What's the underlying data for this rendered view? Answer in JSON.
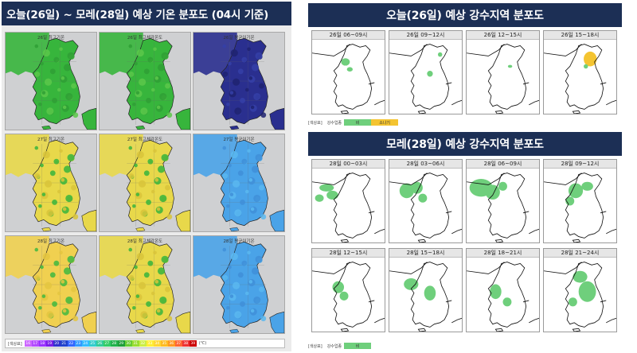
{
  "temp_panel": {
    "title": "오늘(26일) ~ 모레(28일) 예상 기온 분포도 (04시 기준)",
    "maps": [
      {
        "label": "26일 최고기온",
        "scheme": "green"
      },
      {
        "label": "26일 최고체감온도",
        "scheme": "green"
      },
      {
        "label": "26일 평균이기온",
        "scheme": "navy"
      },
      {
        "label": "27일 최고기온",
        "scheme": "yellow"
      },
      {
        "label": "27일 최고체감온도",
        "scheme": "yellow"
      },
      {
        "label": "27일 평균이기온",
        "scheme": "blue"
      },
      {
        "label": "28일 최고기온",
        "scheme": "yellowlight"
      },
      {
        "label": "28일 최고체감온도",
        "scheme": "yellow"
      },
      {
        "label": "28일 평균이기온",
        "scheme": "blue"
      }
    ],
    "legend": {
      "title": "[색상표]",
      "unit": "(℃)",
      "values": [
        "16",
        "17",
        "18",
        "19",
        "20",
        "21",
        "22",
        "23",
        "24",
        "25",
        "26",
        "27",
        "28",
        "29",
        "30",
        "31",
        "32",
        "33",
        "34",
        "35",
        "36",
        "37",
        "38",
        "39"
      ],
      "colors": [
        "#cc66ff",
        "#b34dff",
        "#9933ff",
        "#7a1fe6",
        "#3333cc",
        "#2244cc",
        "#3366ff",
        "#3399ff",
        "#33bbff",
        "#33cccc",
        "#33cc99",
        "#33cc66",
        "#22b14c",
        "#1f9e3a",
        "#66cc33",
        "#99dd33",
        "#ccee44",
        "#ffee33",
        "#ffd633",
        "#ffbb22",
        "#ff9922",
        "#ff6633",
        "#ee3333",
        "#cc0000"
      ]
    }
  },
  "precip_today": {
    "title": "오늘(26일) 예상 강수지역 분포도",
    "maps": [
      {
        "label": "26일 06~09시"
      },
      {
        "label": "26일 09~12시"
      },
      {
        "label": "26일 12~15시"
      },
      {
        "label": "26일 15~18시"
      }
    ],
    "legend": {
      "title": "[색상표]",
      "type_label": "강수업종",
      "items": [
        {
          "label": "비",
          "color": "#6fcf7c"
        },
        {
          "label": "소나기",
          "color": "#f4c431"
        }
      ]
    }
  },
  "precip_2day": {
    "title": "모레(28일) 예상 강수지역 분포도",
    "maps": [
      {
        "label": "28일 00~03시"
      },
      {
        "label": "28일 03~06시"
      },
      {
        "label": "28일 06~09시"
      },
      {
        "label": "28일 09~12시"
      },
      {
        "label": "28일 12~15시"
      },
      {
        "label": "28일 15~18시"
      },
      {
        "label": "28일 18~21시"
      },
      {
        "label": "28일 21~24시"
      }
    ],
    "legend": {
      "title": "[색상표]",
      "type_label": "강수업종",
      "items": [
        {
          "label": "비",
          "color": "#6fcf7c"
        }
      ]
    }
  },
  "colors": {
    "title_bar": "#1c2f55",
    "green": "#37b53c",
    "green_dark": "#1f8f2f",
    "yellow": "#e8d84a",
    "navy": "#2a2f8f",
    "blue": "#4aa3e8",
    "rain": "#6fcf7c",
    "shower": "#f4c431"
  }
}
